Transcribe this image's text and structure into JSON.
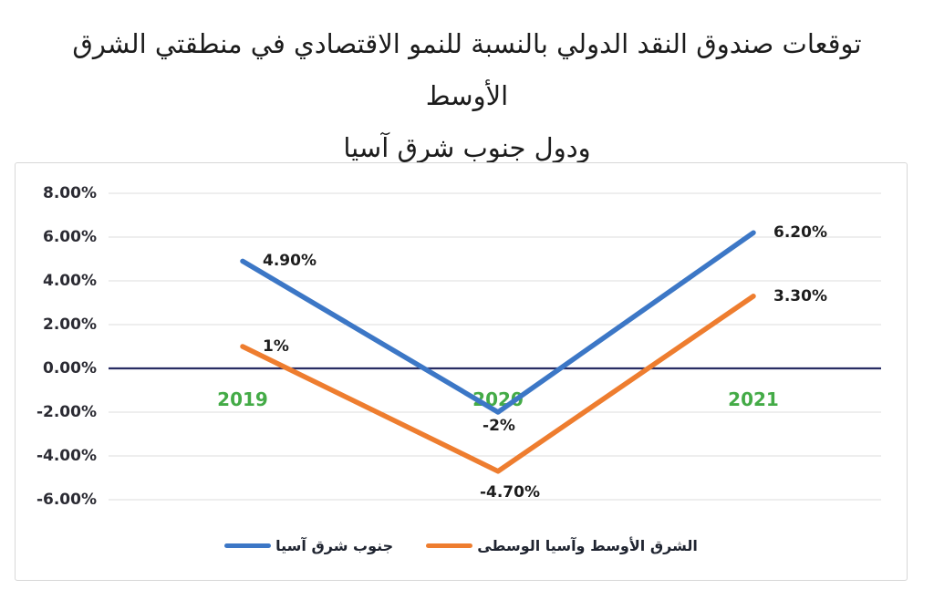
{
  "title": {
    "line1": "توقعات صندوق النقد الدولي بالنسبة للنمو الاقتصادي في منطقتي الشرق الأوسط",
    "line2": "ودول جنوب شرق آسيا"
  },
  "chart_data": {
    "type": "line",
    "categories": [
      "2019",
      "2020",
      "2021"
    ],
    "series": [
      {
        "name": "جنوب شرق آسيا",
        "color": "#3c77c6",
        "values": [
          4.9,
          -2.0,
          6.2
        ],
        "point_labels": [
          "4.90%",
          "-2%",
          "6.20%"
        ]
      },
      {
        "name": "الشرق الأوسط وآسيا الوسطى",
        "color": "#ee7d2f",
        "values": [
          1.0,
          -4.7,
          3.3
        ],
        "point_labels": [
          "1%",
          "-4.70%",
          "3.30%"
        ]
      }
    ],
    "yticks": [
      "8.00%",
      "6.00%",
      "4.00%",
      "2.00%",
      "0.00%",
      "-2.00%",
      "-4.00%",
      "-6.00%"
    ],
    "ylim": [
      -6,
      8
    ],
    "ytick_step": 2,
    "grid": true,
    "legend_position": "bottom",
    "category_label_color": "#44ab47",
    "zero_axis_color": "#272c63",
    "gridline_color": "#dedede"
  }
}
